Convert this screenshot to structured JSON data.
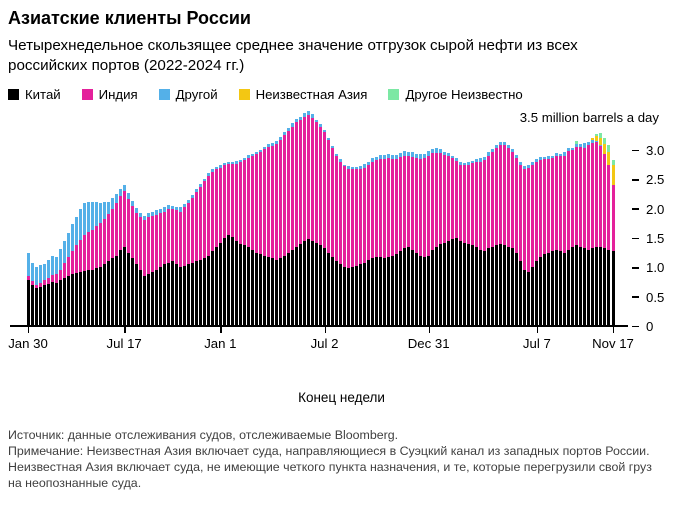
{
  "title": "Азиатские клиенты России",
  "subtitle": "Четырехнедельное скользящее среднее значение отгрузок сырой нефти из всех российских портов (2022-2024 гг.)",
  "unit_note": "3.5 million barrels a day",
  "xlabel": "Конец недели",
  "source": "Источник: данные отслеживания судов, отслеживаемые Bloomberg.",
  "note": "Примечание: Неизвестная Азия включает суда, направляющиеся в Суэцкий канал из западных портов России. Неизвестная Азия включает суда, не имеющие четкого пункта назначения, и те, которые перегрузили свой груз на неопознанные суда.",
  "legend": [
    {
      "label": "Китай",
      "color": "#000000"
    },
    {
      "label": "Индия",
      "color": "#e4219b"
    },
    {
      "label": "Другой",
      "color": "#54b0e8"
    },
    {
      "label": "Неизвестная Азия",
      "color": "#f3c713"
    },
    {
      "label": "Другое Неизвестно",
      "color": "#7ce8a4"
    }
  ],
  "chart_data": {
    "type": "bar",
    "stacked": true,
    "title": "Азиатские клиенты России",
    "xlabel": "Конец недели",
    "ylabel": "million barrels a day",
    "ylim": [
      0,
      3.7
    ],
    "grid": false,
    "legend_position": "top",
    "y_tick_values": [
      0,
      0.5,
      1.0,
      1.5,
      2.0,
      2.5,
      3.0
    ],
    "y_tick_labels": [
      "0",
      "0.5",
      "1.0",
      "1.5",
      "2.0",
      "2.5",
      "3.0"
    ],
    "x_tick_labels": [
      "Jan 30",
      "Jul 17",
      "Jan 1",
      "Jul 2",
      "Dec 31",
      "Jul 7",
      "Nov 17"
    ],
    "x_tick_weeks": [
      0,
      24,
      48,
      74,
      100,
      127,
      146
    ],
    "weeks": 147,
    "series": [
      {
        "name": "Китай",
        "color": "#000000",
        "values": [
          0.78,
          0.7,
          0.65,
          0.67,
          0.7,
          0.72,
          0.75,
          0.73,
          0.78,
          0.82,
          0.85,
          0.88,
          0.9,
          0.92,
          0.93,
          0.95,
          0.96,
          0.98,
          1.0,
          1.05,
          1.1,
          1.15,
          1.2,
          1.3,
          1.35,
          1.25,
          1.15,
          1.05,
          0.95,
          0.85,
          0.88,
          0.92,
          0.95,
          1.0,
          1.05,
          1.08,
          1.1,
          1.05,
          1.0,
          1.02,
          1.05,
          1.08,
          1.1,
          1.12,
          1.15,
          1.2,
          1.28,
          1.35,
          1.42,
          1.5,
          1.55,
          1.52,
          1.45,
          1.4,
          1.38,
          1.35,
          1.3,
          1.25,
          1.22,
          1.2,
          1.18,
          1.15,
          1.12,
          1.15,
          1.2,
          1.25,
          1.3,
          1.35,
          1.4,
          1.45,
          1.48,
          1.45,
          1.42,
          1.38,
          1.32,
          1.25,
          1.18,
          1.1,
          1.05,
          1.0,
          0.98,
          1.0,
          1.02,
          1.05,
          1.08,
          1.12,
          1.15,
          1.18,
          1.17,
          1.15,
          1.18,
          1.2,
          1.22,
          1.28,
          1.32,
          1.35,
          1.3,
          1.25,
          1.2,
          1.18,
          1.2,
          1.3,
          1.35,
          1.4,
          1.42,
          1.45,
          1.48,
          1.5,
          1.45,
          1.42,
          1.4,
          1.38,
          1.35,
          1.3,
          1.28,
          1.32,
          1.35,
          1.38,
          1.4,
          1.38,
          1.35,
          1.32,
          1.25,
          1.1,
          0.95,
          0.92,
          1.0,
          1.1,
          1.18,
          1.22,
          1.25,
          1.28,
          1.3,
          1.28,
          1.25,
          1.3,
          1.35,
          1.38,
          1.35,
          1.32,
          1.3,
          1.32,
          1.35,
          1.35,
          1.33,
          1.3,
          1.28
        ]
      },
      {
        "name": "Индия",
        "color": "#e4219b",
        "values": [
          0.07,
          0.06,
          0.05,
          0.06,
          0.08,
          0.1,
          0.12,
          0.15,
          0.18,
          0.25,
          0.32,
          0.4,
          0.48,
          0.55,
          0.62,
          0.65,
          0.68,
          0.72,
          0.75,
          0.78,
          0.8,
          0.85,
          0.9,
          0.92,
          0.95,
          0.92,
          0.9,
          0.88,
          0.9,
          0.95,
          0.97,
          0.95,
          0.95,
          0.92,
          0.9,
          0.92,
          0.9,
          0.92,
          0.95,
          1.0,
          1.05,
          1.1,
          1.18,
          1.25,
          1.32,
          1.35,
          1.35,
          1.32,
          1.28,
          1.25,
          1.22,
          1.25,
          1.32,
          1.4,
          1.45,
          1.52,
          1.6,
          1.68,
          1.75,
          1.82,
          1.88,
          1.92,
          1.98,
          2.02,
          2.05,
          2.08,
          2.1,
          2.12,
          2.12,
          2.12,
          2.12,
          2.1,
          2.05,
          2.02,
          1.98,
          1.92,
          1.85,
          1.8,
          1.75,
          1.72,
          1.7,
          1.68,
          1.65,
          1.62,
          1.62,
          1.63,
          1.65,
          1.65,
          1.68,
          1.7,
          1.68,
          1.65,
          1.62,
          1.6,
          1.58,
          1.55,
          1.58,
          1.62,
          1.65,
          1.68,
          1.7,
          1.65,
          1.6,
          1.55,
          1.5,
          1.45,
          1.38,
          1.32,
          1.3,
          1.32,
          1.35,
          1.4,
          1.45,
          1.5,
          1.55,
          1.58,
          1.62,
          1.65,
          1.68,
          1.7,
          1.68,
          1.65,
          1.62,
          1.65,
          1.72,
          1.78,
          1.75,
          1.7,
          1.65,
          1.62,
          1.6,
          1.58,
          1.6,
          1.62,
          1.65,
          1.68,
          1.65,
          1.68,
          1.7,
          1.72,
          1.78,
          1.8,
          1.78,
          1.72,
          1.6,
          1.45,
          1.12
        ]
      },
      {
        "name": "Другой",
        "color": "#54b0e8",
        "values": [
          0.4,
          0.32,
          0.3,
          0.3,
          0.28,
          0.3,
          0.32,
          0.3,
          0.35,
          0.38,
          0.42,
          0.45,
          0.48,
          0.52,
          0.55,
          0.52,
          0.48,
          0.42,
          0.35,
          0.28,
          0.22,
          0.18,
          0.15,
          0.12,
          0.1,
          0.1,
          0.08,
          0.08,
          0.07,
          0.08,
          0.07,
          0.08,
          0.08,
          0.07,
          0.08,
          0.07,
          0.05,
          0.06,
          0.07,
          0.06,
          0.05,
          0.06,
          0.05,
          0.05,
          0.04,
          0.05,
          0.04,
          0.04,
          0.04,
          0.03,
          0.03,
          0.03,
          0.04,
          0.03,
          0.03,
          0.04,
          0.03,
          0.04,
          0.03,
          0.04,
          0.04,
          0.05,
          0.05,
          0.05,
          0.06,
          0.05,
          0.06,
          0.06,
          0.05,
          0.06,
          0.07,
          0.06,
          0.05,
          0.05,
          0.04,
          0.04,
          0.04,
          0.03,
          0.04,
          0.03,
          0.04,
          0.03,
          0.04,
          0.05,
          0.06,
          0.05,
          0.06,
          0.05,
          0.07,
          0.06,
          0.08,
          0.06,
          0.08,
          0.07,
          0.08,
          0.06,
          0.08,
          0.07,
          0.08,
          0.07,
          0.08,
          0.07,
          0.08,
          0.06,
          0.05,
          0.05,
          0.04,
          0.04,
          0.05,
          0.04,
          0.05,
          0.04,
          0.05,
          0.06,
          0.05,
          0.06,
          0.05,
          0.06,
          0.05,
          0.06,
          0.05,
          0.04,
          0.05,
          0.04,
          0.05,
          0.04,
          0.05,
          0.04,
          0.05,
          0.04,
          0.05,
          0.04,
          0.05,
          0.04,
          0.06,
          0.05,
          0.04,
          0.05,
          0.06,
          0.08,
          0.06,
          0.05,
          0.03,
          0.02,
          0,
          0,
          0
        ]
      },
      {
        "name": "Неизвестная Азия",
        "color": "#f3c713",
        "values": [
          0,
          0,
          0,
          0,
          0,
          0,
          0,
          0,
          0,
          0,
          0,
          0,
          0,
          0,
          0,
          0,
          0,
          0,
          0,
          0,
          0,
          0,
          0,
          0,
          0,
          0,
          0,
          0,
          0,
          0,
          0,
          0,
          0,
          0,
          0,
          0,
          0,
          0,
          0,
          0,
          0,
          0,
          0,
          0,
          0,
          0,
          0,
          0,
          0,
          0,
          0,
          0,
          0,
          0,
          0,
          0,
          0,
          0,
          0,
          0,
          0,
          0,
          0,
          0,
          0,
          0,
          0,
          0,
          0,
          0,
          0,
          0,
          0,
          0,
          0,
          0,
          0,
          0,
          0,
          0,
          0,
          0,
          0,
          0,
          0,
          0,
          0,
          0,
          0,
          0,
          0,
          0,
          0,
          0,
          0,
          0,
          0,
          0,
          0,
          0,
          0,
          0,
          0,
          0,
          0,
          0,
          0,
          0,
          0,
          0,
          0,
          0,
          0,
          0,
          0,
          0,
          0,
          0,
          0,
          0,
          0,
          0,
          0,
          0,
          0,
          0,
          0,
          0,
          0,
          0,
          0,
          0,
          0,
          0,
          0,
          0,
          0,
          0,
          0,
          0,
          0,
          0.04,
          0.08,
          0.12,
          0.18,
          0.22,
          0.35
        ]
      },
      {
        "name": "Другое Неизвестно",
        "color": "#7ce8a4",
        "values": [
          0,
          0,
          0,
          0,
          0,
          0,
          0,
          0,
          0,
          0,
          0,
          0,
          0,
          0,
          0,
          0,
          0,
          0,
          0,
          0,
          0,
          0,
          0,
          0,
          0,
          0,
          0,
          0,
          0,
          0,
          0,
          0,
          0,
          0,
          0,
          0,
          0,
          0,
          0,
          0,
          0,
          0,
          0,
          0,
          0,
          0,
          0,
          0,
          0,
          0,
          0,
          0,
          0,
          0,
          0,
          0,
          0,
          0,
          0,
          0,
          0,
          0,
          0,
          0,
          0,
          0,
          0,
          0,
          0,
          0,
          0,
          0,
          0,
          0,
          0,
          0,
          0,
          0,
          0,
          0,
          0,
          0,
          0,
          0,
          0,
          0,
          0,
          0,
          0,
          0,
          0,
          0,
          0,
          0,
          0,
          0,
          0,
          0,
          0,
          0,
          0,
          0,
          0,
          0,
          0,
          0,
          0,
          0,
          0,
          0,
          0,
          0,
          0,
          0,
          0,
          0,
          0,
          0,
          0,
          0,
          0,
          0,
          0,
          0,
          0,
          0,
          0,
          0,
          0,
          0,
          0,
          0,
          0,
          0,
          0,
          0,
          0,
          0.04,
          0,
          0,
          0,
          0,
          0.03,
          0.08,
          0.1,
          0.12,
          0.08
        ]
      }
    ]
  }
}
